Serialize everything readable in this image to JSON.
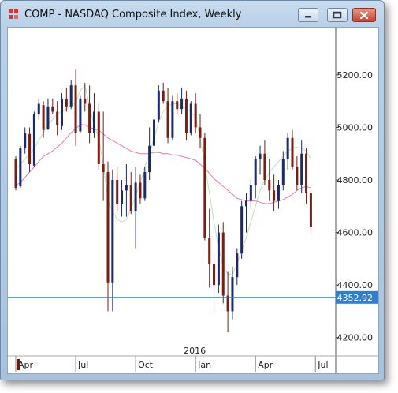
{
  "window": {
    "title": "COMP - NASDAQ Composite Index, Weekly"
  },
  "icons": {
    "app": "app-icon",
    "minimize": "minimize-icon",
    "maximize": "maximize-icon",
    "close": "close-icon"
  },
  "chart_data": {
    "type": "candlestick",
    "title": "COMP - NASDAQ Composite Index, Weekly",
    "ylim": [
      4130,
      5380
    ],
    "y_ticks": [
      4200,
      4400,
      4600,
      4800,
      5000,
      5200
    ],
    "y_tick_labels": [
      "4200.00",
      "4400.00",
      "4600.00",
      "4800.00",
      "5000.00",
      "5200.00"
    ],
    "x_tick_labels": [
      {
        "label": "Apr",
        "index": 0
      },
      {
        "label": "Jul",
        "index": 13
      },
      {
        "label": "Oct",
        "index": 26
      },
      {
        "label": "Jan",
        "index": 39
      },
      {
        "label": "Apr",
        "index": 52
      },
      {
        "label": "Jul",
        "index": 65
      }
    ],
    "year_label": {
      "label": "2016",
      "index": 39
    },
    "price_line": {
      "value": 4352.92,
      "label": "4352.92",
      "color": "#2f7fd0"
    },
    "colors": {
      "up": "#1c2a6a",
      "down": "#7a1d12",
      "ma_fast": "#bfe0b8",
      "ma_slow": "#e07ab0"
    },
    "ohlc": [
      [
        4880,
        4890,
        4760,
        4770
      ],
      [
        4775,
        4930,
        4770,
        4920
      ],
      [
        4920,
        5000,
        4900,
        4980
      ],
      [
        4975,
        5000,
        4830,
        4860
      ],
      [
        4855,
        5060,
        4850,
        5050
      ],
      [
        5050,
        5110,
        5030,
        5090
      ],
      [
        5085,
        5100,
        4960,
        4990
      ],
      [
        4995,
        5110,
        4990,
        5080
      ],
      [
        5080,
        5110,
        5050,
        5060
      ],
      [
        5060,
        5100,
        4970,
        5010
      ],
      [
        5005,
        5130,
        4990,
        5110
      ],
      [
        5110,
        5150,
        5060,
        5080
      ],
      [
        5080,
        5180,
        5070,
        5160
      ],
      [
        5160,
        5220,
        4930,
        4980
      ],
      [
        4985,
        5120,
        4980,
        5110
      ],
      [
        5110,
        5170,
        5060,
        5090
      ],
      [
        5090,
        5160,
        4940,
        4980
      ],
      [
        4980,
        5130,
        4960,
        5060
      ],
      [
        5060,
        5090,
        4840,
        4860
      ],
      [
        4860,
        5060,
        4720,
        4830
      ],
      [
        4830,
        4870,
        4300,
        4410
      ],
      [
        4410,
        4840,
        4300,
        4800
      ],
      [
        4800,
        4850,
        4680,
        4710
      ],
      [
        4710,
        4800,
        4660,
        4760
      ],
      [
        4760,
        4860,
        4660,
        4780
      ],
      [
        4780,
        4830,
        4670,
        4680
      ],
      [
        4680,
        4850,
        4540,
        4790
      ],
      [
        4790,
        4820,
        4710,
        4730
      ],
      [
        4730,
        4850,
        4720,
        4830
      ],
      [
        4830,
        5000,
        4800,
        4930
      ],
      [
        4930,
        5050,
        4910,
        5030
      ],
      [
        5030,
        5160,
        5020,
        5140
      ],
      [
        5140,
        5170,
        5090,
        5100
      ],
      [
        5100,
        5150,
        4940,
        4960
      ],
      [
        4960,
        5120,
        4950,
        5100
      ],
      [
        5100,
        5130,
        5050,
        5070
      ],
      [
        5070,
        5150,
        5050,
        5110
      ],
      [
        5110,
        5140,
        4950,
        4980
      ],
      [
        4980,
        5100,
        4970,
        5090
      ],
      [
        5090,
        5130,
        4980,
        5000
      ],
      [
        5000,
        5050,
        4920,
        4960
      ],
      [
        4960,
        4980,
        4570,
        4580
      ],
      [
        4580,
        4690,
        4390,
        4480
      ],
      [
        4480,
        4520,
        4290,
        4400
      ],
      [
        4400,
        4630,
        4370,
        4600
      ],
      [
        4600,
        4640,
        4330,
        4360
      ],
      [
        4360,
        4450,
        4220,
        4300
      ],
      [
        4300,
        4470,
        4270,
        4430
      ],
      [
        4430,
        4540,
        4400,
        4520
      ],
      [
        4520,
        4720,
        4500,
        4700
      ],
      [
        4700,
        4750,
        4600,
        4720
      ],
      [
        4720,
        4800,
        4690,
        4780
      ],
      [
        4780,
        4890,
        4730,
        4880
      ],
      [
        4880,
        4930,
        4820,
        4900
      ],
      [
        4900,
        4950,
        4780,
        4800
      ],
      [
        4800,
        4880,
        4720,
        4760
      ],
      [
        4760,
        4820,
        4680,
        4720
      ],
      [
        4720,
        4800,
        4690,
        4780
      ],
      [
        4780,
        4910,
        4760,
        4880
      ],
      [
        4880,
        4980,
        4840,
        4960
      ],
      [
        4960,
        4990,
        4840,
        4850
      ],
      [
        4850,
        4890,
        4760,
        4780
      ],
      [
        4780,
        4950,
        4750,
        4900
      ],
      [
        4900,
        4920,
        4710,
        4750
      ],
      [
        4750,
        4760,
        4600,
        4620
      ]
    ],
    "ma_fast": [
      4840,
      4860,
      4880,
      4900,
      4920,
      4950,
      4980,
      5010,
      5030,
      5050,
      5060,
      5070,
      5085,
      5095,
      5140,
      5160,
      5080,
      5010,
      4960,
      4860,
      4720,
      4680,
      4650,
      4640,
      4650,
      4690,
      4740,
      4790,
      4850,
      4900,
      4960,
      5020,
      5060,
      5080,
      5090,
      5090,
      5080,
      5070,
      5060,
      5040,
      4960,
      4860,
      4750,
      4640,
      4540,
      4470,
      4440,
      4440,
      4480,
      4530,
      4580,
      4640,
      4700,
      4760,
      4800,
      4830,
      4850,
      4870,
      4890,
      4910,
      4920,
      4925,
      4920,
      4910,
      4880
    ],
    "ma_slow": [
      4780,
      4790,
      4810,
      4830,
      4850,
      4870,
      4890,
      4900,
      4910,
      4925,
      4940,
      4960,
      4980,
      4995,
      5010,
      5010,
      5000,
      4995,
      4990,
      4975,
      4960,
      4950,
      4940,
      4930,
      4920,
      4910,
      4905,
      4900,
      4900,
      4900,
      4905,
      4905,
      4900,
      4900,
      4895,
      4895,
      4890,
      4885,
      4880,
      4875,
      4860,
      4845,
      4825,
      4805,
      4790,
      4775,
      4760,
      4745,
      4730,
      4725,
      4720,
      4720,
      4720,
      4715,
      4710,
      4710,
      4715,
      4720,
      4725,
      4735,
      4745,
      4760,
      4770,
      4775,
      4770
    ]
  }
}
